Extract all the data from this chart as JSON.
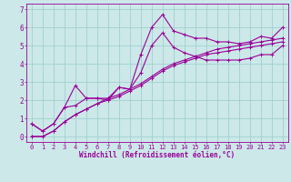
{
  "xlabel": "Windchill (Refroidissement éolien,°C)",
  "x_values": [
    0,
    1,
    2,
    3,
    4,
    5,
    6,
    7,
    8,
    9,
    10,
    11,
    12,
    13,
    14,
    15,
    16,
    17,
    18,
    19,
    20,
    21,
    22,
    23
  ],
  "line1": [
    0.7,
    0.3,
    0.7,
    1.6,
    2.8,
    2.1,
    2.1,
    2.1,
    2.7,
    2.6,
    4.5,
    6.0,
    6.7,
    5.8,
    5.6,
    5.4,
    5.4,
    5.2,
    5.2,
    5.1,
    5.2,
    5.5,
    5.4,
    6.0
  ],
  "line2": [
    0.7,
    0.3,
    0.7,
    1.6,
    1.7,
    2.1,
    2.1,
    2.0,
    2.7,
    2.6,
    3.5,
    5.0,
    5.7,
    4.9,
    4.6,
    4.4,
    4.2,
    4.2,
    4.2,
    4.2,
    4.3,
    4.5,
    4.5,
    5.0
  ],
  "line3": [
    0.0,
    0.0,
    0.3,
    0.8,
    1.2,
    1.5,
    1.8,
    2.0,
    2.2,
    2.5,
    2.8,
    3.2,
    3.6,
    3.9,
    4.1,
    4.3,
    4.5,
    4.6,
    4.7,
    4.8,
    4.9,
    5.0,
    5.1,
    5.2
  ],
  "line4": [
    0.0,
    0.0,
    0.3,
    0.8,
    1.2,
    1.5,
    1.8,
    2.1,
    2.3,
    2.6,
    2.9,
    3.3,
    3.7,
    4.0,
    4.2,
    4.4,
    4.6,
    4.8,
    4.9,
    5.0,
    5.1,
    5.2,
    5.3,
    5.4
  ],
  "line_color": "#990099",
  "bg_color": "#cce8e8",
  "grid_color": "#99cccc",
  "ylim": [
    -0.3,
    7.3
  ],
  "xlim": [
    -0.5,
    23.5
  ],
  "yticks": [
    0,
    1,
    2,
    3,
    4,
    5,
    6,
    7
  ],
  "xticks": [
    0,
    1,
    2,
    3,
    4,
    5,
    6,
    7,
    8,
    9,
    10,
    11,
    12,
    13,
    14,
    15,
    16,
    17,
    18,
    19,
    20,
    21,
    22,
    23
  ],
  "xlabel_fontsize": 5.5,
  "tick_fontsize": 5.0,
  "marker_size": 2.5,
  "line_width": 0.8
}
